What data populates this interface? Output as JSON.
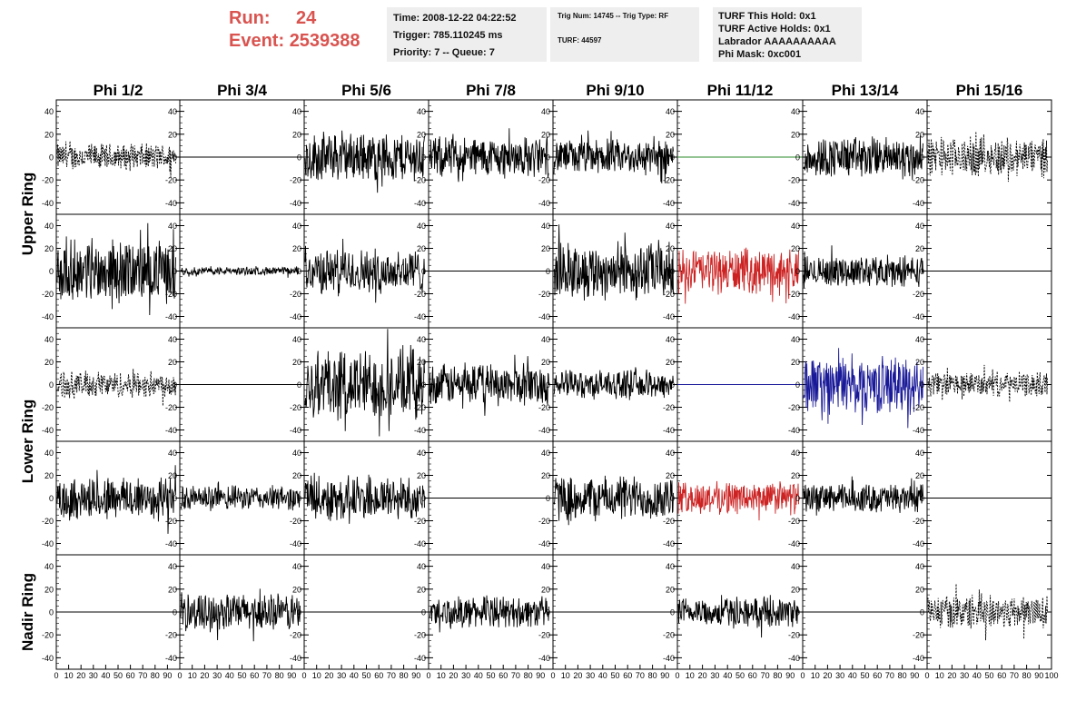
{
  "header": {
    "run_label": "Run:",
    "run_value": "24",
    "event_label": "Event:",
    "event_value": "2539388",
    "time": "Time: 2008-12-22 04:22:52",
    "trigger": "Trigger: 785.110245 ms",
    "priority": "Priority: 7 -- Queue: 7",
    "trig_num": "Trig Num: 14745 -- Trig Type: RF",
    "turf": "TURF: 44597",
    "turf_this_hold": "TURF This Hold: 0x1",
    "turf_active_holds": "TURF Active Holds: 0x1",
    "labrador": "Labrador AAAAAAAAAA",
    "phi_mask": "Phi Mask: 0xc001"
  },
  "columns": [
    "Phi 1/2",
    "Phi 3/4",
    "Phi 5/6",
    "Phi 7/8",
    "Phi 9/10",
    "Phi 11/12",
    "Phi 13/14",
    "Phi 15/16"
  ],
  "rows": [
    "Upper Ring",
    "Lower Ring",
    "Nadir Ring"
  ],
  "axis": {
    "y_ticks": [
      "40",
      "20",
      "0",
      "-20",
      "-40"
    ],
    "x_ticks": [
      "0",
      "10",
      "20",
      "30",
      "40",
      "50",
      "60",
      "70",
      "80",
      "90",
      "100"
    ],
    "x_range": [
      0,
      100
    ],
    "y_range": [
      -50,
      50
    ]
  },
  "colors": {
    "black": "#000000",
    "red": "#cc2222",
    "blue": "#1a1a99",
    "green": "#2a8a2a"
  },
  "panels": [
    [
      "dashed:13",
      "flat",
      "noise:24",
      "noise:20",
      "noise:17",
      "flat:green",
      "noise:20",
      "dashed:19"
    ],
    [
      "noise:30",
      "small:4",
      "noise:22",
      "flat",
      "noise:28",
      "noise:red:22",
      "noise:15",
      "flat"
    ],
    [
      "dashed:13",
      "flat",
      "noise:35",
      "noise:20",
      "noise:14",
      "flat:blue",
      "noise:blue:28",
      "dashed:12"
    ],
    [
      "noise:22",
      "noise:12",
      "noise:22",
      "flat",
      "noise:22",
      "noise:red:16",
      "noise:14",
      "flat"
    ],
    [
      "flat",
      "noise:18",
      "flat",
      "noise:15",
      "flat",
      "noise:14",
      "flat",
      "dashed:17"
    ]
  ]
}
